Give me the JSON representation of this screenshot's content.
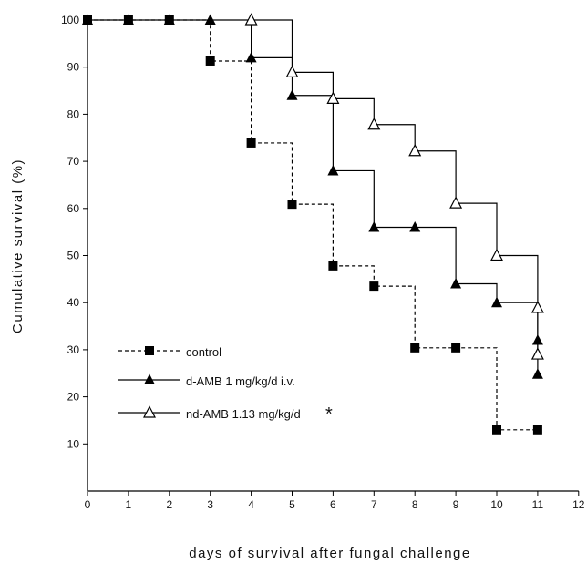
{
  "chart_data": {
    "type": "line",
    "step": true,
    "xlabel": "days of survival after fungal challenge",
    "ylabel": "Cumulative survival (%)",
    "xlim": [
      0,
      12
    ],
    "ylim": [
      0,
      100
    ],
    "xticks": [
      0,
      1,
      2,
      3,
      4,
      5,
      6,
      7,
      8,
      9,
      10,
      11,
      12
    ],
    "yticks": [
      10,
      20,
      30,
      40,
      50,
      60,
      70,
      80,
      90,
      100
    ],
    "grid": false,
    "legend": "lower-left",
    "series": [
      {
        "name": "control",
        "marker": "filled-square",
        "line": "dashed",
        "color": "#000000",
        "points": [
          [
            0,
            100
          ],
          [
            1,
            100
          ],
          [
            2,
            100
          ],
          [
            3,
            91.3
          ],
          [
            4,
            73.9
          ],
          [
            5,
            60.9
          ],
          [
            6,
            47.8
          ],
          [
            7,
            43.5
          ],
          [
            8,
            30.4
          ],
          [
            9,
            30.4
          ],
          [
            10,
            13.0
          ],
          [
            11,
            13.0
          ]
        ]
      },
      {
        "name": "d-AMB 1 mg/kg/d i.v.",
        "marker": "filled-triangle",
        "line": "solid",
        "color": "#000000",
        "points": [
          [
            0,
            100
          ],
          [
            1,
            100
          ],
          [
            2,
            100
          ],
          [
            3,
            100
          ],
          [
            4,
            92.0
          ],
          [
            5,
            84.0
          ],
          [
            6,
            68.0
          ],
          [
            7,
            56.0
          ],
          [
            8,
            56.0
          ],
          [
            9,
            44.0
          ],
          [
            10,
            40.0
          ],
          [
            11,
            32.0
          ],
          [
            11,
            24.8
          ]
        ]
      },
      {
        "name": "nd-AMB 1.13 mg/kg/d",
        "marker": "open-triangle",
        "line": "solid",
        "color": "#000000",
        "points": [
          [
            4,
            100
          ],
          [
            5,
            88.9
          ],
          [
            6,
            83.3
          ],
          [
            7,
            77.8
          ],
          [
            8,
            72.2
          ],
          [
            9,
            61.1
          ],
          [
            10,
            50.0
          ],
          [
            11,
            38.9
          ],
          [
            11,
            29.0
          ]
        ]
      }
    ],
    "annotation": "*"
  }
}
